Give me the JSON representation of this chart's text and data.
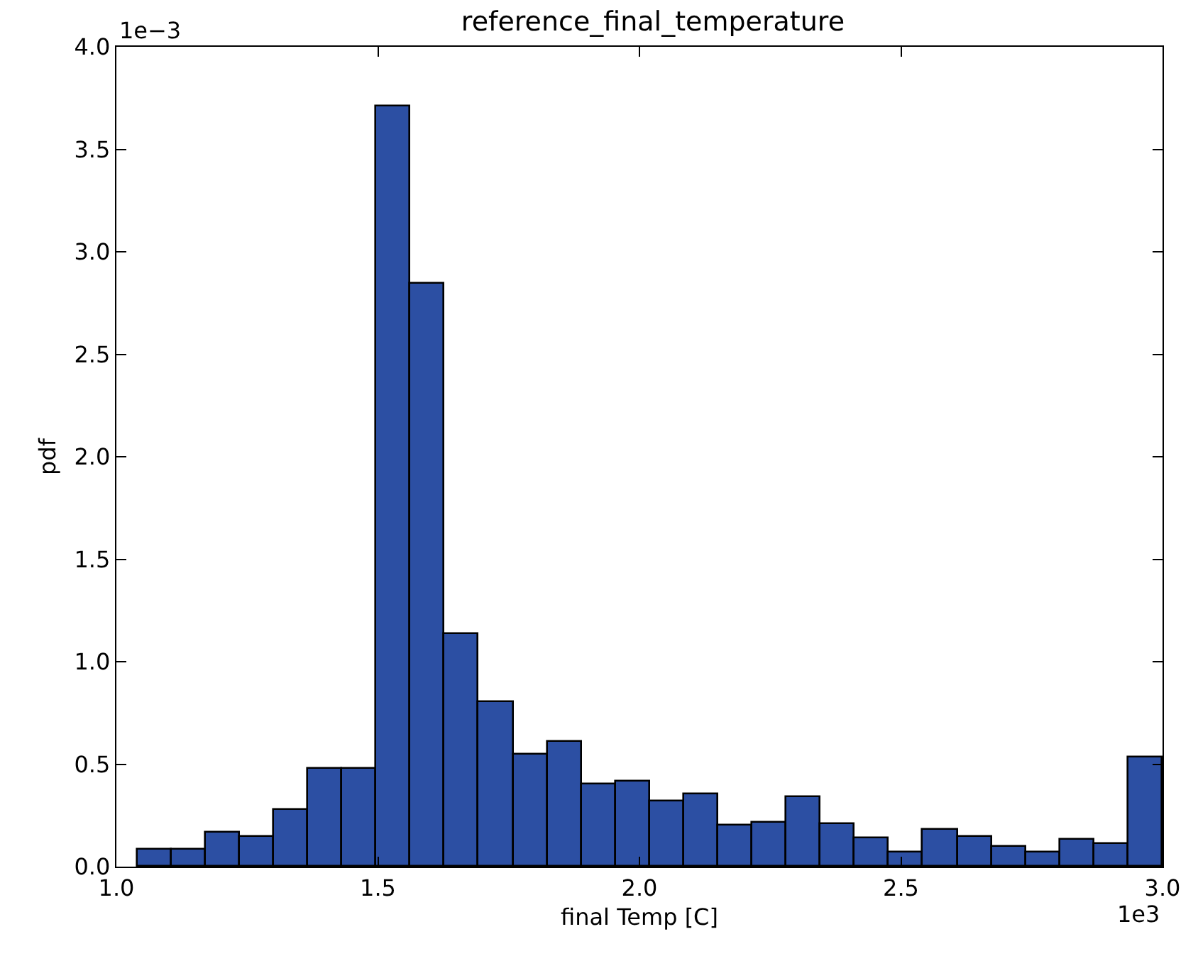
{
  "chart_data": {
    "type": "histogram",
    "title": "reference_final_temperature",
    "xlabel": "final Temp [C]",
    "ylabel": "pdf",
    "annotations": [
      "1e−3",
      "1e3"
    ],
    "bins": [
      1.04,
      1.1053,
      1.1707,
      1.236,
      1.3013,
      1.3667,
      1.432,
      1.4973,
      1.5627,
      1.628,
      1.6933,
      1.7587,
      1.824,
      1.8893,
      1.9547,
      2.02,
      2.0853,
      2.1507,
      2.216,
      2.2813,
      2.3467,
      2.412,
      2.4773,
      2.5427,
      2.608,
      2.6733,
      2.7387,
      2.804,
      2.8693,
      2.9347,
      3.0
    ],
    "values": [
      0.08,
      0.083,
      0.165,
      0.142,
      0.276,
      0.48,
      0.48,
      3.71,
      2.845,
      1.135,
      0.8,
      0.55,
      0.61,
      0.4,
      0.417,
      0.317,
      0.35,
      0.2,
      0.218,
      0.34,
      0.208,
      0.141,
      0.067,
      0.183,
      0.148,
      0.097,
      0.072,
      0.132,
      0.113,
      0.532
    ],
    "color": "#2c4fa3",
    "xlim": [
      1.0,
      3.0
    ],
    "ylim": [
      0.0,
      4.0
    ],
    "xticks": [
      {
        "value": 1.0,
        "label": "1.0"
      },
      1.5,
      {
        "value": 2.0,
        "label": "2.0"
      },
      2.5,
      {
        "value": 3.0,
        "label": "3.0"
      }
    ],
    "yticks": [
      {
        "value": 0.0,
        "label": "0.0"
      },
      0.5,
      {
        "value": 1.0,
        "label": "1.0"
      },
      1.5,
      {
        "value": 2.0,
        "label": "2.0"
      },
      2.5,
      {
        "value": 3.0,
        "label": "3.0"
      },
      3.5,
      {
        "value": 4.0,
        "label": "4.0"
      }
    ]
  }
}
